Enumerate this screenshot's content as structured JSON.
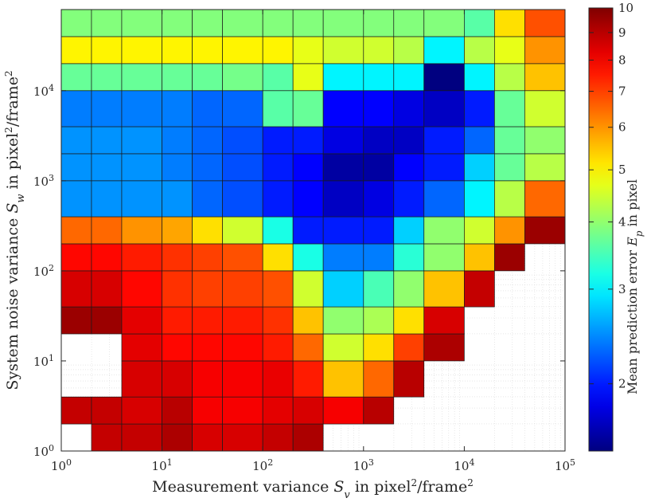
{
  "chart_data": {
    "type": "heatmap",
    "xlabel_html": "Measurement variance <i>S</i><tspan baseline-shift='sub' font-size='13'>v</tspan> in pixel<tspan baseline-shift='super' font-size='12'>2</tspan>/frame<tspan baseline-shift='super' font-size='12'>2</tspan>",
    "xlabel": "Measurement variance S_v in pixel²/frame²",
    "ylabel": "System noise variance S_w in pixel²/frame²",
    "colorbar_label": "Mean prediction error E_p in pixel",
    "x_scale": "log",
    "y_scale": "log",
    "xlim": [
      1,
      100000
    ],
    "ylim": [
      1,
      100000
    ],
    "x_ticks": [
      {
        "value": 1,
        "label": "10",
        "exp": "0"
      },
      {
        "value": 10,
        "label": "10",
        "exp": "1"
      },
      {
        "value": 100,
        "label": "10",
        "exp": "2"
      },
      {
        "value": 1000,
        "label": "10",
        "exp": "3"
      },
      {
        "value": 10000,
        "label": "10",
        "exp": "4"
      },
      {
        "value": 100000,
        "label": "10",
        "exp": "5"
      }
    ],
    "y_ticks": [
      {
        "value": 1,
        "label": "10",
        "exp": "0"
      },
      {
        "value": 10,
        "label": "10",
        "exp": "1"
      },
      {
        "value": 100,
        "label": "10",
        "exp": "2"
      },
      {
        "value": 1000,
        "label": "10",
        "exp": "3"
      },
      {
        "value": 10000,
        "label": "10",
        "exp": "4"
      }
    ],
    "colorbar": {
      "scale": "log",
      "min": 1.5,
      "max": 10,
      "ticks": [
        2,
        3,
        4,
        5,
        6,
        7,
        8,
        9,
        10
      ]
    },
    "grid": true,
    "x_edges_log10": [
      0,
      0.3,
      0.6,
      1,
      1.3,
      1.6,
      2,
      2.3,
      2.6,
      3,
      3.3,
      3.6,
      4,
      4.3,
      4.6,
      5
    ],
    "y_edges_log10": [
      0,
      0.3,
      0.6,
      1,
      1.3,
      1.6,
      2,
      2.3,
      2.6,
      3,
      3.3,
      3.6,
      4,
      4.3,
      4.6,
      4.9
    ],
    "values": [
      [
        null,
        8.8,
        8.8,
        9.2,
        8.5,
        8.5,
        8.8,
        9.2,
        null,
        null,
        null,
        null,
        null,
        null,
        null
      ],
      [
        8.8,
        8.8,
        8.5,
        9.0,
        8.0,
        8.0,
        8.3,
        8.5,
        8.0,
        9.0,
        null,
        null,
        null,
        null,
        null
      ],
      [
        null,
        null,
        8.5,
        8.5,
        8.0,
        8.0,
        8.2,
        7.5,
        5.5,
        6.5,
        9.0,
        null,
        null,
        null,
        null
      ],
      [
        null,
        null,
        8.3,
        7.8,
        7.8,
        7.8,
        7.5,
        6.5,
        4.5,
        5.2,
        7.0,
        9.2,
        null,
        null,
        null
      ],
      [
        9.5,
        9.5,
        8.3,
        7.5,
        7.5,
        7.5,
        7.2,
        5.5,
        4.0,
        4.2,
        5.2,
        8.5,
        null,
        null,
        null
      ],
      [
        8.5,
        8.5,
        7.8,
        7.2,
        7.0,
        7.0,
        6.8,
        4.5,
        2.8,
        3.5,
        4.0,
        5.5,
        8.8,
        null,
        null
      ],
      [
        7.8,
        7.8,
        7.5,
        7.2,
        7.0,
        6.8,
        5.2,
        3.2,
        2.4,
        2.4,
        3.3,
        4.0,
        5.5,
        9.5,
        null
      ],
      [
        6.5,
        6.5,
        6.0,
        5.8,
        5.2,
        4.5,
        3.2,
        2.0,
        2.0,
        2.0,
        2.8,
        4.0,
        4.5,
        6.0,
        9.5
      ],
      [
        2.5,
        2.5,
        2.5,
        2.5,
        2.3,
        2.2,
        2.0,
        1.9,
        1.7,
        1.8,
        2.0,
        2.3,
        3.0,
        4.3,
        6.5
      ],
      [
        2.5,
        2.5,
        2.5,
        2.4,
        2.3,
        2.2,
        2.0,
        1.9,
        1.6,
        1.6,
        1.9,
        2.0,
        2.8,
        3.7,
        4.3
      ],
      [
        2.5,
        2.5,
        2.5,
        2.4,
        2.3,
        2.2,
        2.0,
        2.0,
        1.8,
        1.7,
        1.7,
        2.0,
        2.3,
        3.7,
        4.0
      ],
      [
        2.4,
        2.4,
        2.4,
        2.4,
        2.3,
        2.3,
        3.6,
        3.7,
        1.9,
        1.9,
        1.8,
        1.7,
        2.0,
        3.7,
        4.5
      ],
      [
        3.7,
        3.7,
        3.7,
        3.7,
        3.7,
        3.8,
        3.6,
        4.7,
        3.0,
        3.0,
        3.0,
        1.5,
        3.0,
        4.3,
        5.5
      ],
      [
        5.0,
        5.0,
        5.0,
        5.0,
        5.0,
        5.0,
        5.0,
        4.7,
        4.5,
        4.5,
        4.3,
        3.0,
        4.3,
        4.7,
        6.0
      ],
      [
        3.9,
        3.9,
        3.9,
        3.9,
        3.9,
        3.9,
        3.9,
        3.9,
        3.9,
        3.9,
        3.9,
        3.9,
        3.6,
        5.2,
        6.8
      ]
    ]
  }
}
